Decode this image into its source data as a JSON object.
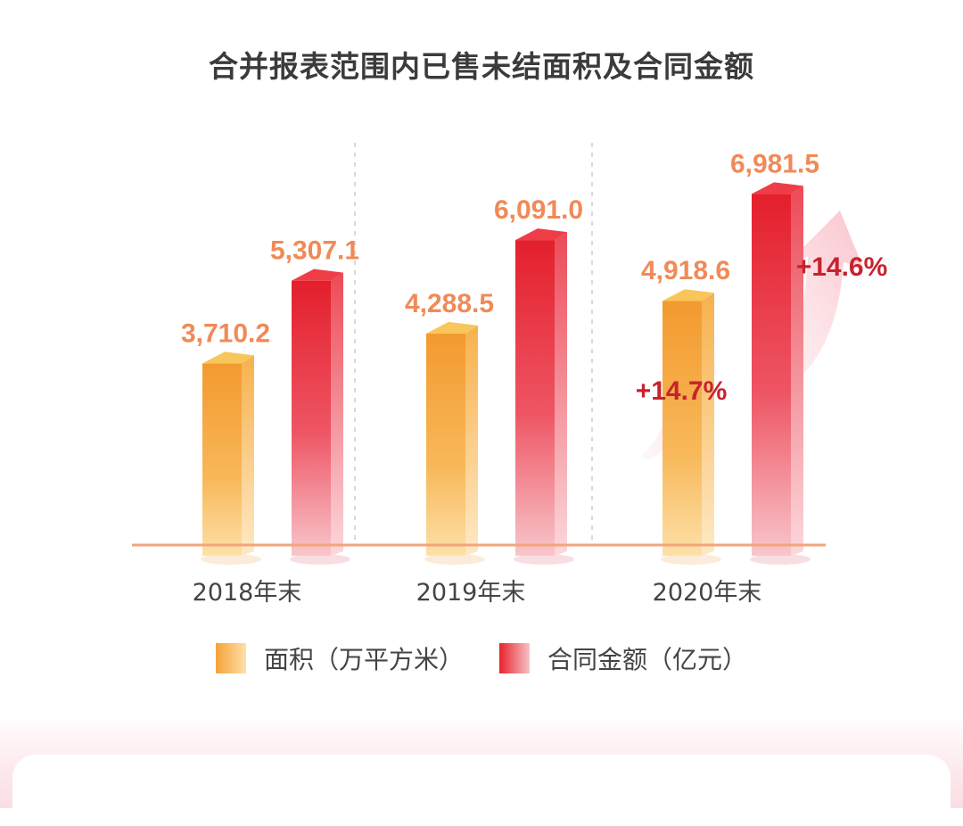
{
  "chart_data": {
    "type": "bar",
    "title": "合并报表范围内已售未结面积及合同金额",
    "categories": [
      "2018年末",
      "2019年末",
      "2020年末"
    ],
    "series": [
      {
        "name": "面积（万平方米）",
        "values": [
          3710.2,
          4288.5,
          4918.6
        ],
        "labels": [
          "3,710.2",
          "4,288.5",
          "4,918.6"
        ],
        "color": "#f39a2f"
      },
      {
        "name": "合同金额（亿元）",
        "values": [
          5307.1,
          6091.0,
          6981.5
        ],
        "labels": [
          "5,307.1",
          "6,091.0",
          "6,981.5"
        ],
        "color": "#e8222e"
      }
    ],
    "annotations": [
      {
        "series": 0,
        "category": 2,
        "text": "+14.7%"
      },
      {
        "series": 1,
        "category": 2,
        "text": "+14.6%"
      }
    ],
    "ylim": [
      0,
      8000
    ],
    "legend": "bottom-center",
    "grid": false,
    "label_color": "#f08a57",
    "annotation_color": "#c8222e"
  }
}
